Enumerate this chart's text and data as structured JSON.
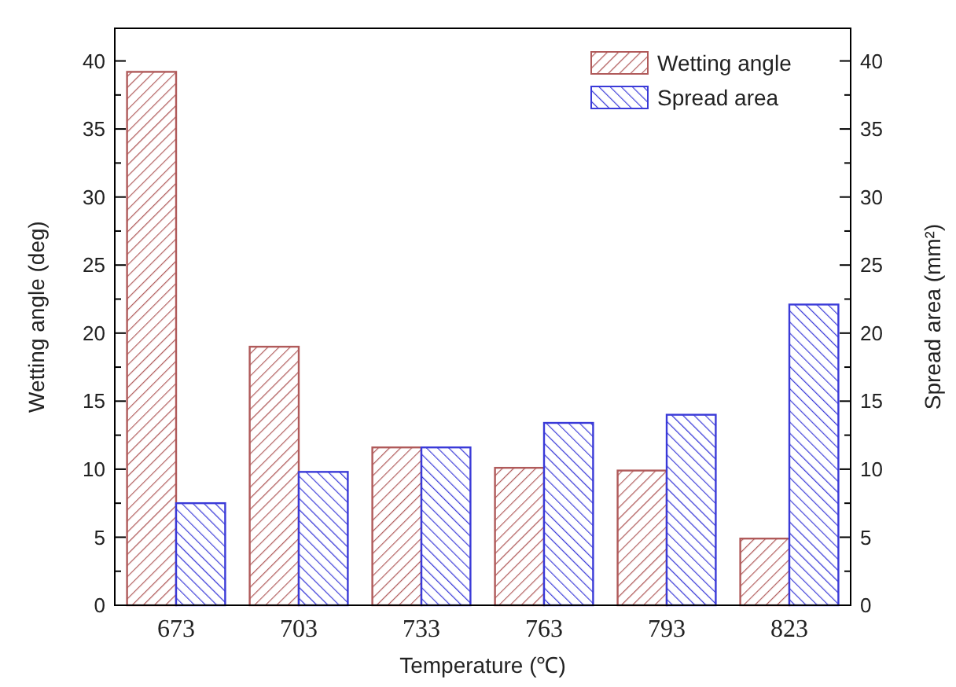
{
  "chart_data": {
    "type": "bar",
    "xlabel": "Temperature (℃)",
    "ylabel": "Wetting angle (deg)",
    "y2label": "Spread area (mm²)",
    "categories": [
      "673",
      "703",
      "733",
      "763",
      "793",
      "823"
    ],
    "series": [
      {
        "name": "Wetting angle",
        "color": "#b05a5a",
        "values": [
          39.2,
          19.0,
          11.6,
          10.1,
          9.9,
          4.9
        ]
      },
      {
        "name": "Spread area",
        "color": "#3a3ad8",
        "axis": "y2",
        "values": [
          7.5,
          9.8,
          11.6,
          13.4,
          14.0,
          22.1
        ]
      }
    ],
    "ylim": [
      0,
      42.4
    ],
    "yticks": [
      0,
      {
        "value": 2.5,
        "label": null
      },
      5,
      {
        "value": 7.5,
        "label": null
      },
      10,
      {
        "value": 12.5,
        "label": null
      },
      15,
      {
        "value": 17.5,
        "label": null
      },
      20,
      {
        "value": 22.5,
        "label": null
      },
      25,
      {
        "value": 27.5,
        "label": null
      },
      30,
      {
        "value": 32.5,
        "label": null
      },
      35,
      {
        "value": 37.5,
        "label": null
      },
      40
    ],
    "y2lim": [
      0,
      42.4
    ],
    "y2ticks": [
      0,
      {
        "value": 2.5,
        "label": null
      },
      5,
      {
        "value": 7.5,
        "label": null
      },
      10,
      {
        "value": 12.5,
        "label": null
      },
      15,
      {
        "value": 17.5,
        "label": null
      },
      20,
      {
        "value": 22.5,
        "label": null
      },
      25,
      {
        "value": 27.5,
        "label": null
      },
      30,
      {
        "value": 32.5,
        "label": null
      },
      35,
      {
        "value": 37.5,
        "label": null
      },
      40
    ],
    "legend": "top right"
  }
}
